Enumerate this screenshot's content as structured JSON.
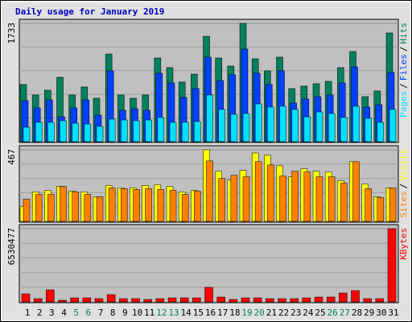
{
  "chart_data": [
    {
      "type": "bar",
      "title": "Daily usage for January 2019",
      "ylim": [
        0,
        1733
      ],
      "yticks": [
        1733
      ],
      "legend_separator": "/",
      "series": [
        {
          "name": "Hits",
          "color": "#00805c",
          "values": [
            837,
            684,
            755,
            943,
            684,
            802,
            637,
            1285,
            684,
            637,
            684,
            1226,
            1085,
            873,
            990,
            1544,
            1226,
            1108,
            1733,
            1214,
            1038,
            1238,
            778,
            814,
            849,
            884,
            1085,
            1320,
            660,
            743,
            1592
          ]
        },
        {
          "name": "Files",
          "color": "#0040ff",
          "values": [
            601,
            495,
            613,
            365,
            495,
            613,
            389,
            1038,
            460,
            483,
            460,
            1002,
            861,
            648,
            778,
            1238,
            896,
            979,
            1356,
            1002,
            837,
            1038,
            566,
            625,
            660,
            684,
            861,
            1096,
            507,
            542,
            1014
          ]
        },
        {
          "name": "Pages",
          "color": "#00e0ff",
          "values": [
            212,
            283,
            283,
            307,
            271,
            259,
            224,
            330,
            318,
            307,
            318,
            354,
            283,
            283,
            295,
            684,
            472,
            401,
            413,
            554,
            507,
            519,
            472,
            365,
            436,
            413,
            354,
            519,
            342,
            283,
            472
          ]
        }
      ]
    },
    {
      "type": "bar",
      "ylim": [
        0,
        467
      ],
      "yticks": [
        467
      ],
      "series": [
        {
          "name": "Visits",
          "color": "#ffff00",
          "values": [
            99,
            192,
            202,
            228,
            197,
            192,
            161,
            234,
            218,
            218,
            234,
            239,
            228,
            192,
            202,
            467,
            327,
            270,
            332,
            446,
            431,
            363,
            291,
            343,
            327,
            322,
            265,
            389,
            244,
            161,
            218
          ]
        },
        {
          "name": "Sites",
          "color": "#ff8000",
          "values": [
            145,
            176,
            176,
            228,
            192,
            176,
            161,
            218,
            213,
            208,
            213,
            208,
            202,
            176,
            197,
            394,
            280,
            301,
            291,
            389,
            368,
            296,
            327,
            322,
            291,
            291,
            249,
            389,
            213,
            156,
            218
          ]
        }
      ]
    },
    {
      "type": "bar",
      "ylim": [
        0,
        6530477
      ],
      "yticks": [
        6530477
      ],
      "categories": [
        "1",
        "2",
        "3",
        "4",
        "5",
        "6",
        "7",
        "8",
        "9",
        "10",
        "11",
        "12",
        "13",
        "14",
        "15",
        "16",
        "17",
        "18",
        "19",
        "20",
        "21",
        "22",
        "23",
        "24",
        "25",
        "26",
        "27",
        "28",
        "29",
        "30",
        "31"
      ],
      "category_colors": [
        "#000000",
        "#000000",
        "#000000",
        "#000000",
        "#008060",
        "#008060",
        "#000000",
        "#000000",
        "#000000",
        "#000000",
        "#000000",
        "#008060",
        "#008060",
        "#000000",
        "#000000",
        "#000000",
        "#000000",
        "#000000",
        "#008060",
        "#008060",
        "#000000",
        "#000000",
        "#000000",
        "#000000",
        "#000000",
        "#008060",
        "#008060",
        "#000000",
        "#000000",
        "#000000",
        "#000000"
      ],
      "series": [
        {
          "name": "KBytes",
          "color": "#ff0000",
          "values": [
            717640,
            287000,
            1076000,
            143500,
            358800,
            358800,
            287000,
            645900,
            287000,
            287000,
            215300,
            287000,
            358800,
            358800,
            358800,
            1291750,
            430600,
            215300,
            358800,
            358800,
            287000,
            287000,
            287000,
            358800,
            430600,
            430600,
            789400,
            1004700,
            287000,
            287000,
            6530477
          ]
        }
      ]
    }
  ]
}
